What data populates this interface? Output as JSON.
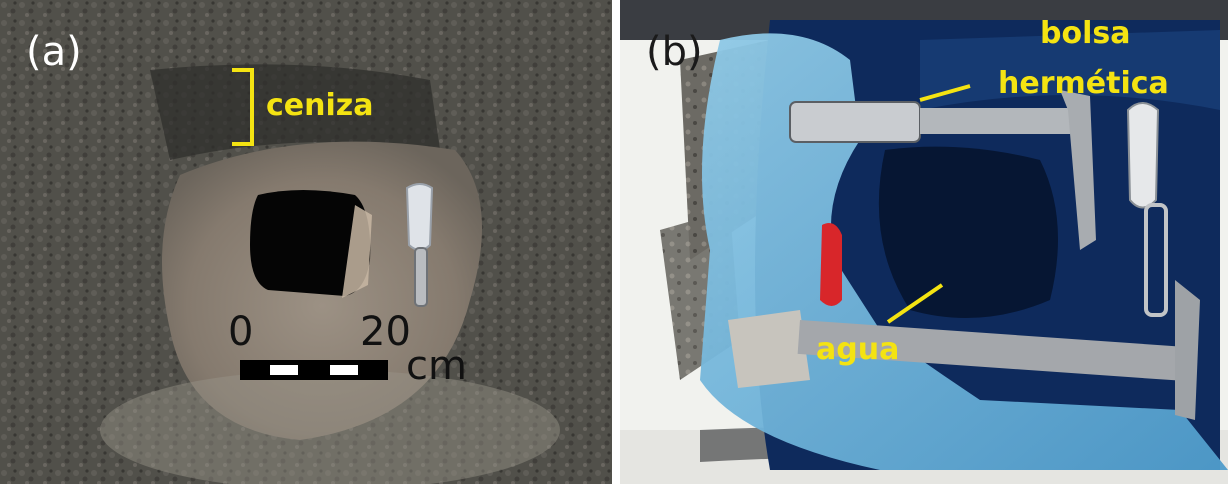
{
  "panel_a": {
    "tag": "(a)",
    "ash_label": "ceniza",
    "scale": {
      "start": "0",
      "end": "20",
      "unit": "cm"
    }
  },
  "panel_b": {
    "tag": "(b)",
    "bag_label_line1": "bolsa",
    "bag_label_line2": "hermética",
    "water_label": "agua"
  },
  "colors": {
    "label_yellow": "#f4e312",
    "soil_dark": "#4a4a46",
    "pit_floor": "#8a7f73",
    "plastic_blue": "#6fb6dc",
    "plastic_dark_blue": "#0e2a5c"
  }
}
